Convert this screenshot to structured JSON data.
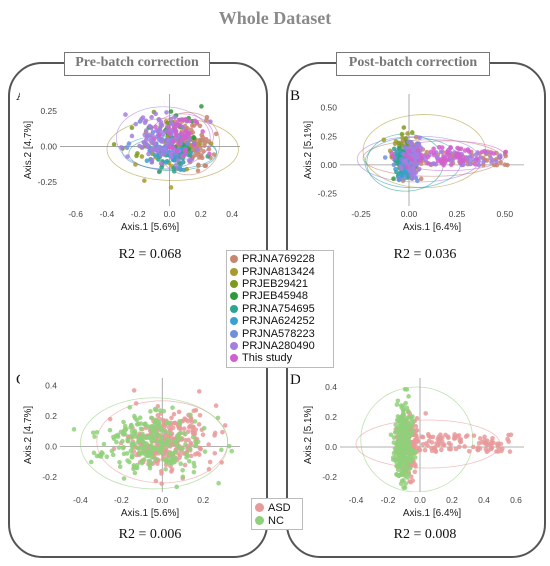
{
  "title": "Whole Dataset",
  "sections": {
    "pre": "Pre-batch correction",
    "post": "Post-batch correction"
  },
  "legend_batch": [
    {
      "label": "PRJNA769228",
      "color": "#c7866e"
    },
    {
      "label": "PRJNA813424",
      "color": "#a89a2e"
    },
    {
      "label": "PRJEB29421",
      "color": "#7d9a1e"
    },
    {
      "label": "PRJEB45948",
      "color": "#2e9a3c"
    },
    {
      "label": "PRJNA754695",
      "color": "#2ea48c"
    },
    {
      "label": "PRJNA624252",
      "color": "#3aa0d0"
    },
    {
      "label": "PRJNA578223",
      "color": "#6f8fdc"
    },
    {
      "label": "PRJNA280490",
      "color": "#a57fe0"
    },
    {
      "label": "This study",
      "color": "#d25fd0"
    }
  ],
  "legend_group": [
    {
      "label": "ASD",
      "color": "#e89a9a"
    },
    {
      "label": "NC",
      "color": "#90d07a"
    }
  ],
  "chart_data": [
    {
      "panel": "A",
      "type": "scatter",
      "coloring": "batch",
      "xlabel": "Axis.1   [5.6%]",
      "ylabel": "Axis.2   [4.7%]",
      "xlim": [
        -0.7,
        0.45
      ],
      "ylim": [
        -0.42,
        0.37
      ],
      "xticks": [
        -0.6,
        -0.4,
        -0.2,
        0.0,
        0.2,
        0.4
      ],
      "xtick_labels": [
        "-0.6",
        "-0.4",
        "-0.2",
        "0.0",
        "0.2",
        "0.4"
      ],
      "yticks": [
        -0.25,
        0.0,
        0.25
      ],
      "ytick_labels": [
        "-0.25",
        "0.00",
        "0.25"
      ],
      "r2_label": "R2 = 0.068",
      "clouds": [
        {
          "batch": 0,
          "n": 130,
          "cx": 0.12,
          "cy": 0.02,
          "sx": 0.07,
          "sy": 0.08
        },
        {
          "batch": 1,
          "n": 25,
          "cx": 0.0,
          "cy": -0.02,
          "sx": 0.15,
          "sy": 0.1
        },
        {
          "batch": 2,
          "n": 20,
          "cx": -0.08,
          "cy": 0.05,
          "sx": 0.1,
          "sy": 0.1
        },
        {
          "batch": 3,
          "n": 25,
          "cx": 0.05,
          "cy": 0.1,
          "sx": 0.08,
          "sy": 0.08
        },
        {
          "batch": 4,
          "n": 45,
          "cx": 0.02,
          "cy": -0.05,
          "sx": 0.08,
          "sy": 0.05
        },
        {
          "batch": 5,
          "n": 40,
          "cx": -0.02,
          "cy": -0.04,
          "sx": 0.07,
          "sy": 0.05
        },
        {
          "batch": 6,
          "n": 30,
          "cx": -0.05,
          "cy": 0.02,
          "sx": 0.1,
          "sy": 0.08
        },
        {
          "batch": 7,
          "n": 110,
          "cx": -0.06,
          "cy": 0.06,
          "sx": 0.1,
          "sy": 0.09
        },
        {
          "batch": 8,
          "n": 40,
          "cx": 0.08,
          "cy": 0.07,
          "sx": 0.08,
          "sy": 0.07
        }
      ],
      "ellipses": [
        {
          "batch": 1,
          "cx": 0.02,
          "cy": -0.02,
          "rx": 0.42,
          "ry": 0.22
        },
        {
          "batch": 0,
          "cx": 0.12,
          "cy": 0.02,
          "rx": 0.2,
          "ry": 0.22
        },
        {
          "batch": 5,
          "cx": 0.0,
          "cy": -0.04,
          "rx": 0.3,
          "ry": 0.12
        },
        {
          "batch": 7,
          "cx": -0.04,
          "cy": 0.06,
          "rx": 0.3,
          "ry": 0.22
        },
        {
          "batch": 4,
          "cx": 0.02,
          "cy": -0.05,
          "rx": 0.28,
          "ry": 0.12
        },
        {
          "batch": 8,
          "cx": 0.08,
          "cy": 0.07,
          "rx": 0.2,
          "ry": 0.16
        }
      ]
    },
    {
      "panel": "B",
      "type": "scatter",
      "coloring": "batch",
      "xlabel": "Axis.1   [6.4%]",
      "ylabel": "Axis.2   [5.1%]",
      "xlim": [
        -0.36,
        0.6
      ],
      "ylim": [
        -0.36,
        0.62
      ],
      "xticks": [
        -0.25,
        0.0,
        0.25,
        0.5
      ],
      "xtick_labels": [
        "-0.25",
        "0.00",
        "0.25",
        "0.50"
      ],
      "yticks": [
        -0.25,
        0.0,
        0.25,
        0.5
      ],
      "ytick_labels": [
        "-0.25",
        "0.00",
        "0.25",
        "0.50"
      ],
      "r2_label": "R2 = 0.036",
      "clouds": [
        {
          "batch": 0,
          "n": 160,
          "cx": 0.0,
          "cy": 0.05,
          "sx": 0.03,
          "sy": 0.08,
          "trail": true
        },
        {
          "batch": 1,
          "n": 25,
          "cx": -0.03,
          "cy": 0.1,
          "sx": 0.03,
          "sy": 0.1
        },
        {
          "batch": 2,
          "n": 20,
          "cx": -0.02,
          "cy": 0.12,
          "sx": 0.03,
          "sy": 0.09
        },
        {
          "batch": 3,
          "n": 25,
          "cx": -0.01,
          "cy": 0.05,
          "sx": 0.03,
          "sy": 0.08
        },
        {
          "batch": 4,
          "n": 40,
          "cx": -0.03,
          "cy": 0.02,
          "sx": 0.03,
          "sy": 0.08
        },
        {
          "batch": 5,
          "n": 35,
          "cx": -0.02,
          "cy": 0.0,
          "sx": 0.03,
          "sy": 0.07
        },
        {
          "batch": 6,
          "n": 30,
          "cx": 0.0,
          "cy": 0.02,
          "sx": 0.04,
          "sy": 0.07
        },
        {
          "batch": 7,
          "n": 110,
          "cx": 0.02,
          "cy": 0.05,
          "sx": 0.03,
          "sy": 0.08,
          "trail": true
        },
        {
          "batch": 8,
          "n": 60,
          "cx": 0.15,
          "cy": 0.08,
          "sx": 0.1,
          "sy": 0.06,
          "trail": true
        }
      ],
      "ellipses": [
        {
          "batch": 1,
          "cx": 0.08,
          "cy": 0.12,
          "rx": 0.32,
          "ry": 0.32
        },
        {
          "batch": 0,
          "cx": 0.12,
          "cy": 0.06,
          "rx": 0.36,
          "ry": 0.16
        },
        {
          "batch": 5,
          "cx": 0.02,
          "cy": 0.02,
          "rx": 0.25,
          "ry": 0.22
        },
        {
          "batch": 7,
          "cx": 0.05,
          "cy": 0.05,
          "rx": 0.32,
          "ry": 0.2
        },
        {
          "batch": 4,
          "cx": -0.02,
          "cy": 0.02,
          "rx": 0.2,
          "ry": 0.25
        },
        {
          "batch": 8,
          "cx": 0.2,
          "cy": 0.08,
          "rx": 0.3,
          "ry": 0.13
        }
      ]
    },
    {
      "panel": "C",
      "type": "scatter",
      "coloring": "group",
      "xlabel": "Axis.1   [5.6%]",
      "ylabel": "Axis.2   [4.7%]",
      "xlim": [
        -0.5,
        0.38
      ],
      "ylim": [
        -0.3,
        0.45
      ],
      "xticks": [
        -0.4,
        -0.2,
        0.0,
        0.2
      ],
      "xtick_labels": [
        "-0.4",
        "-0.2",
        "0.0",
        "0.2"
      ],
      "yticks": [
        -0.2,
        0.0,
        0.2,
        0.4
      ],
      "ytick_labels": [
        "-0.2",
        "0.0",
        "0.2",
        "0.4"
      ],
      "r2_label": "R2 = 0.006",
      "clouds": [
        {
          "group": 0,
          "n": 300,
          "cx": 0.02,
          "cy": 0.04,
          "sx": 0.1,
          "sy": 0.1
        },
        {
          "group": 1,
          "n": 250,
          "cx": -0.06,
          "cy": 0.02,
          "sx": 0.12,
          "sy": 0.1
        }
      ],
      "ellipses": [
        {
          "group": 0,
          "cx": 0.0,
          "cy": 0.03,
          "rx": 0.32,
          "ry": 0.27
        },
        {
          "group": 1,
          "cx": -0.04,
          "cy": 0.02,
          "rx": 0.36,
          "ry": 0.3
        }
      ]
    },
    {
      "panel": "D",
      "type": "scatter",
      "coloring": "group",
      "xlabel": "Axis.1   [6.4%]",
      "ylabel": "Axis.2   [5.1%]",
      "xlim": [
        -0.5,
        0.65
      ],
      "ylim": [
        -0.3,
        0.46
      ],
      "xticks": [
        -0.4,
        -0.2,
        0.0,
        0.2,
        0.4,
        0.6
      ],
      "xtick_labels": [
        "-0.4",
        "-0.2",
        "0.0",
        "0.2",
        "0.4",
        "0.6"
      ],
      "yticks": [
        -0.2,
        0.0,
        0.2,
        0.4
      ],
      "ytick_labels": [
        "-0.2",
        "0.0",
        "0.2",
        "0.4"
      ],
      "r2_label": "R2 = 0.008",
      "clouds": [
        {
          "group": 0,
          "n": 300,
          "cx": -0.08,
          "cy": 0.02,
          "sx": 0.03,
          "sy": 0.1,
          "trail": true
        },
        {
          "group": 1,
          "n": 250,
          "cx": -0.1,
          "cy": 0.03,
          "sx": 0.03,
          "sy": 0.12
        }
      ],
      "ellipses": [
        {
          "group": 0,
          "cx": 0.05,
          "cy": 0.02,
          "rx": 0.45,
          "ry": 0.16
        },
        {
          "group": 1,
          "cx": -0.02,
          "cy": 0.05,
          "rx": 0.35,
          "ry": 0.35
        }
      ]
    }
  ]
}
